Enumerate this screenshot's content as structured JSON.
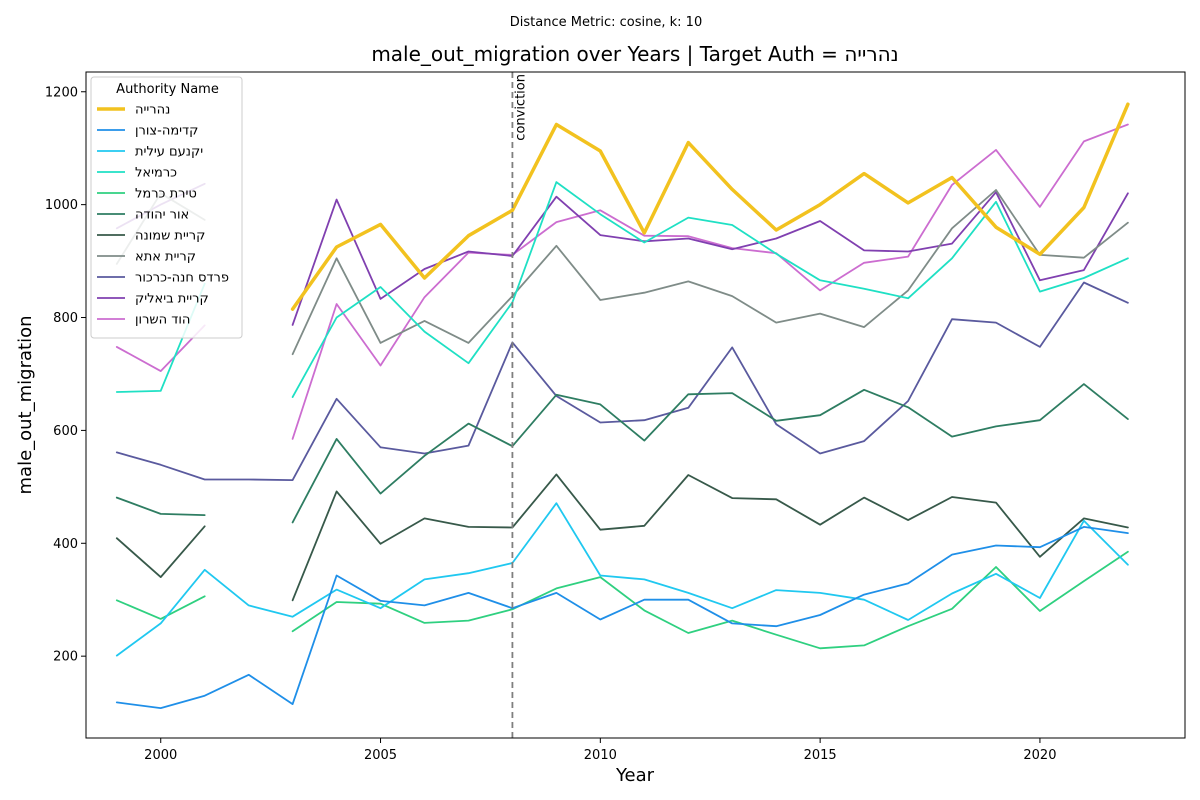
{
  "chart_data": {
    "type": "line",
    "suptitle": "Distance Metric: cosine, k: 10",
    "title": "male_out_migration over Years | Target Auth = נהרייה",
    "xlabel": "Year",
    "ylabel": "male_out_migration",
    "xlim": [
      1998.3,
      2023.3
    ],
    "ylim": [
      55,
      1235
    ],
    "xticks": [
      2000,
      2005,
      2010,
      2015,
      2020
    ],
    "yticks": [
      200,
      400,
      600,
      800,
      1000,
      1200
    ],
    "grid": false,
    "legend": {
      "title": "Authority Name",
      "placement": "top-left"
    },
    "annotation": {
      "x": 2008,
      "label": "conviction",
      "color": "#7f7f7f"
    },
    "x": [
      1999,
      2000,
      2001,
      2002,
      2003,
      2004,
      2005,
      2006,
      2007,
      2008,
      2009,
      2010,
      2011,
      2012,
      2013,
      2014,
      2015,
      2016,
      2017,
      2018,
      2019,
      2020,
      2021,
      2022
    ],
    "series": [
      {
        "name": "נהרייה",
        "color": "#f2c21f",
        "width": 3.5,
        "values": [
          null,
          null,
          975,
          null,
          815,
          925,
          965,
          870,
          945,
          990,
          1142,
          1095,
          950,
          1110,
          1027,
          955,
          1000,
          1055,
          1003,
          1048,
          960,
          912,
          995,
          1178
        ]
      },
      {
        "name": "קדימה-צורן",
        "color": "#1f8fe8",
        "width": 1.8,
        "values": [
          118,
          108,
          130,
          167,
          115,
          343,
          298,
          290,
          312,
          285,
          312,
          265,
          300,
          300,
          258,
          253,
          273,
          309,
          329,
          380,
          396,
          393,
          429,
          418
        ]
      },
      {
        "name": "יקנעם עילית",
        "color": "#20c8f0",
        "width": 1.8,
        "values": [
          201,
          258,
          353,
          290,
          270,
          318,
          285,
          336,
          347,
          365,
          471,
          343,
          336,
          312,
          285,
          317,
          312,
          300,
          264,
          311,
          346,
          303,
          440,
          362
        ]
      },
      {
        "name": "כרמיאל",
        "color": "#1fe0c4",
        "width": 1.8,
        "values": [
          668,
          670,
          860,
          null,
          659,
          800,
          854,
          775,
          719,
          827,
          1040,
          983,
          933,
          977,
          964,
          913,
          866,
          851,
          834,
          905,
          1005,
          846,
          870,
          905
        ]
      },
      {
        "name": "טירת כרמל",
        "color": "#2fd080",
        "width": 1.8,
        "values": [
          299,
          266,
          306,
          null,
          244,
          296,
          293,
          259,
          263,
          283,
          320,
          340,
          281,
          241,
          263,
          238,
          214,
          219,
          253,
          284,
          358,
          280,
          333,
          385
        ]
      },
      {
        "name": "אור יהודה",
        "color": "#2e7d62",
        "width": 1.8,
        "values": [
          481,
          452,
          450,
          null,
          437,
          585,
          488,
          555,
          612,
          572,
          663,
          646,
          582,
          664,
          666,
          617,
          627,
          672,
          641,
          589,
          607,
          618,
          682,
          620
        ]
      },
      {
        "name": "קריית שמונה",
        "color": "#37594a",
        "width": 1.8,
        "values": [
          409,
          340,
          430,
          null,
          299,
          492,
          399,
          444,
          429,
          428,
          522,
          424,
          431,
          521,
          480,
          478,
          433,
          481,
          441,
          482,
          472,
          376,
          444,
          428
        ]
      },
      {
        "name": "קריית אתא",
        "color": "#7f8c88",
        "width": 1.8,
        "values": [
          895,
          1020,
          973,
          null,
          735,
          905,
          755,
          794,
          755,
          838,
          927,
          831,
          844,
          864,
          838,
          791,
          807,
          783,
          848,
          958,
          1026,
          911,
          906,
          968
        ]
      },
      {
        "name": "פרדס חנה-כרכור",
        "color": "#5a5a9e",
        "width": 1.8,
        "values": [
          561,
          539,
          513,
          513,
          512,
          656,
          570,
          559,
          573,
          756,
          661,
          614,
          618,
          640,
          747,
          611,
          559,
          581,
          652,
          797,
          791,
          748,
          862,
          826
        ]
      },
      {
        "name": "קריית ביאליק",
        "color": "#8040b0",
        "width": 1.8,
        "values": [
          958,
          1000,
          1037,
          null,
          787,
          1009,
          833,
          886,
          917,
          909,
          1014,
          946,
          935,
          940,
          921,
          940,
          971,
          919,
          917,
          931,
          1022,
          866,
          884,
          1020
        ]
      },
      {
        "name": "הוד השרון",
        "color": "#cc6dd0",
        "width": 1.8,
        "values": [
          748,
          705,
          786,
          null,
          585,
          824,
          715,
          836,
          915,
          911,
          969,
          990,
          945,
          944,
          923,
          914,
          848,
          897,
          908,
          1035,
          1097,
          996,
          1112,
          1142
        ]
      }
    ]
  }
}
